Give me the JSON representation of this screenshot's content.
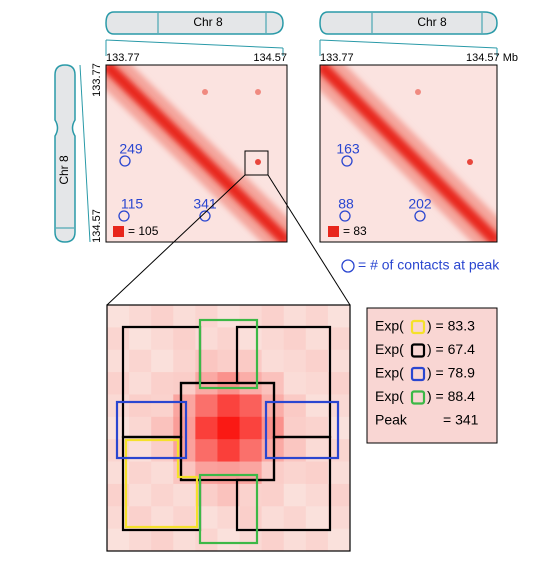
{
  "panels": [
    {
      "chromosome": "Chr 8",
      "x_start": "133.77",
      "x_end": "134.57",
      "peaks": [
        "249",
        "115",
        "341"
      ],
      "scale": "= 105"
    },
    {
      "chromosome": "Chr 8",
      "x_start": "133.77",
      "x_end": "134.57 Mb",
      "peaks": [
        "163",
        "88",
        "202"
      ],
      "scale": "= 83"
    }
  ],
  "side_chromosome": {
    "label": "Chr 8",
    "start": "133.77",
    "end": "134.57"
  },
  "circle_legend": "= # of contacts at peak",
  "expected": [
    {
      "prefix": "Exp(",
      "suffix": ") = 83.3"
    },
    {
      "prefix": "Exp(",
      "suffix": ") = 67.4"
    },
    {
      "prefix": "Exp(",
      "suffix": ") = 78.9"
    },
    {
      "prefix": "Exp(",
      "suffix": ") = 88.4"
    }
  ],
  "peak": {
    "label": "Peak",
    "value": "= 341"
  }
}
